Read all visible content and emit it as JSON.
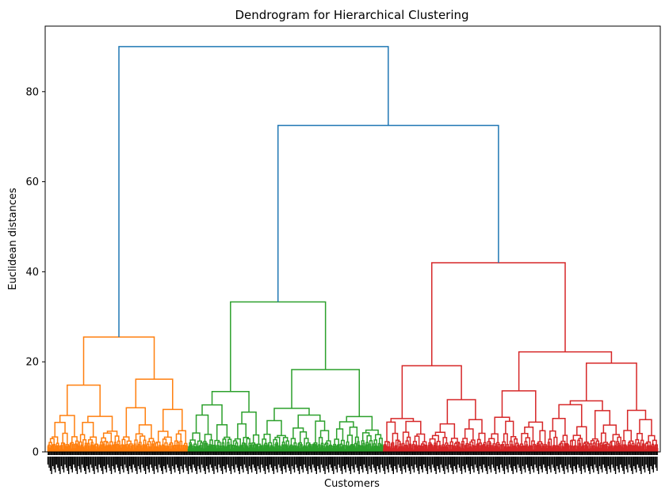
{
  "chart_data": {
    "type": "dendrogram",
    "title": "Dendrogram for Hierarchical Clustering",
    "xlabel": "Customers",
    "ylabel": "Euclidean distances",
    "ylim": [
      0,
      95
    ],
    "yticks": [
      "0",
      "20",
      "40",
      "60",
      "80"
    ],
    "grid": false,
    "legend": "none",
    "colors": {
      "root": "#1f77b4",
      "cluster_1": "#ff7f0e",
      "cluster_2": "#2ca02c",
      "cluster_3": "#d62728",
      "axis": "#000000"
    },
    "leaf_count": 1000,
    "clusters": [
      {
        "color": "cluster_1",
        "leaf_range": [
          0,
          230
        ]
      },
      {
        "color": "cluster_2",
        "leaf_range": [
          230,
          550
        ]
      },
      {
        "color": "cluster_3",
        "leaf_range": [
          550,
          1000
        ]
      }
    ],
    "merges": [
      {
        "id": "m1",
        "left": [
          0,
          120
        ],
        "right": [
          120,
          230
        ],
        "height": 25.5,
        "color": "cluster_1"
      },
      {
        "id": "m2",
        "left": [
          230,
          350
        ],
        "right": [
          350,
          550
        ],
        "height": 33.3,
        "color": "cluster_2"
      },
      {
        "id": "m3",
        "left": [
          550,
          720
        ],
        "right": [
          720,
          1000
        ],
        "height": 42.0,
        "color": "cluster_3"
      },
      {
        "id": "m4",
        "left": [
          230,
          550
        ],
        "right": [
          550,
          1000
        ],
        "height": 72.5,
        "color": "root"
      },
      {
        "id": "m5",
        "left": [
          0,
          230
        ],
        "right": [
          230,
          1000
        ],
        "height": 90.0,
        "color": "root"
      }
    ]
  }
}
